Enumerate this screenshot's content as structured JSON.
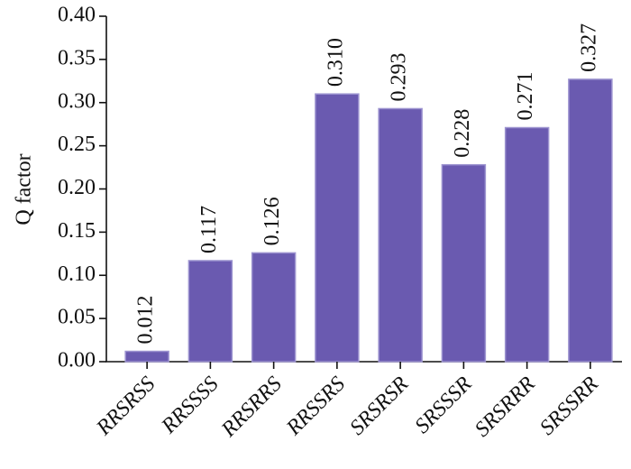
{
  "chart_data": {
    "type": "bar",
    "y_label": "Q factor",
    "categories": [
      "RRSRSS",
      "RRSSSS",
      "RRSRRS",
      "RRSSRS",
      "SRSRSR",
      "SRSSSR",
      "SRSRRR",
      "SRSSRR"
    ],
    "values": [
      0.012,
      0.117,
      0.126,
      0.31,
      0.293,
      0.228,
      0.271,
      0.327
    ],
    "value_labels": [
      "0.012",
      "0.117",
      "0.126",
      "0.310",
      "0.293",
      "0.228",
      "0.271",
      "0.327"
    ],
    "color": "#6a5ab0",
    "ylim": [
      0,
      0.4
    ],
    "yticks": [
      {
        "value": 0,
        "label": "0.00"
      },
      0.05,
      {
        "value": 0.1,
        "label": "0.10"
      },
      0.15,
      {
        "value": 0.2,
        "label": "0.20"
      },
      0.25,
      {
        "value": 0.3,
        "label": "0.30"
      },
      0.35,
      {
        "value": 0.4,
        "label": "0.40"
      }
    ],
    "grid": false
  }
}
